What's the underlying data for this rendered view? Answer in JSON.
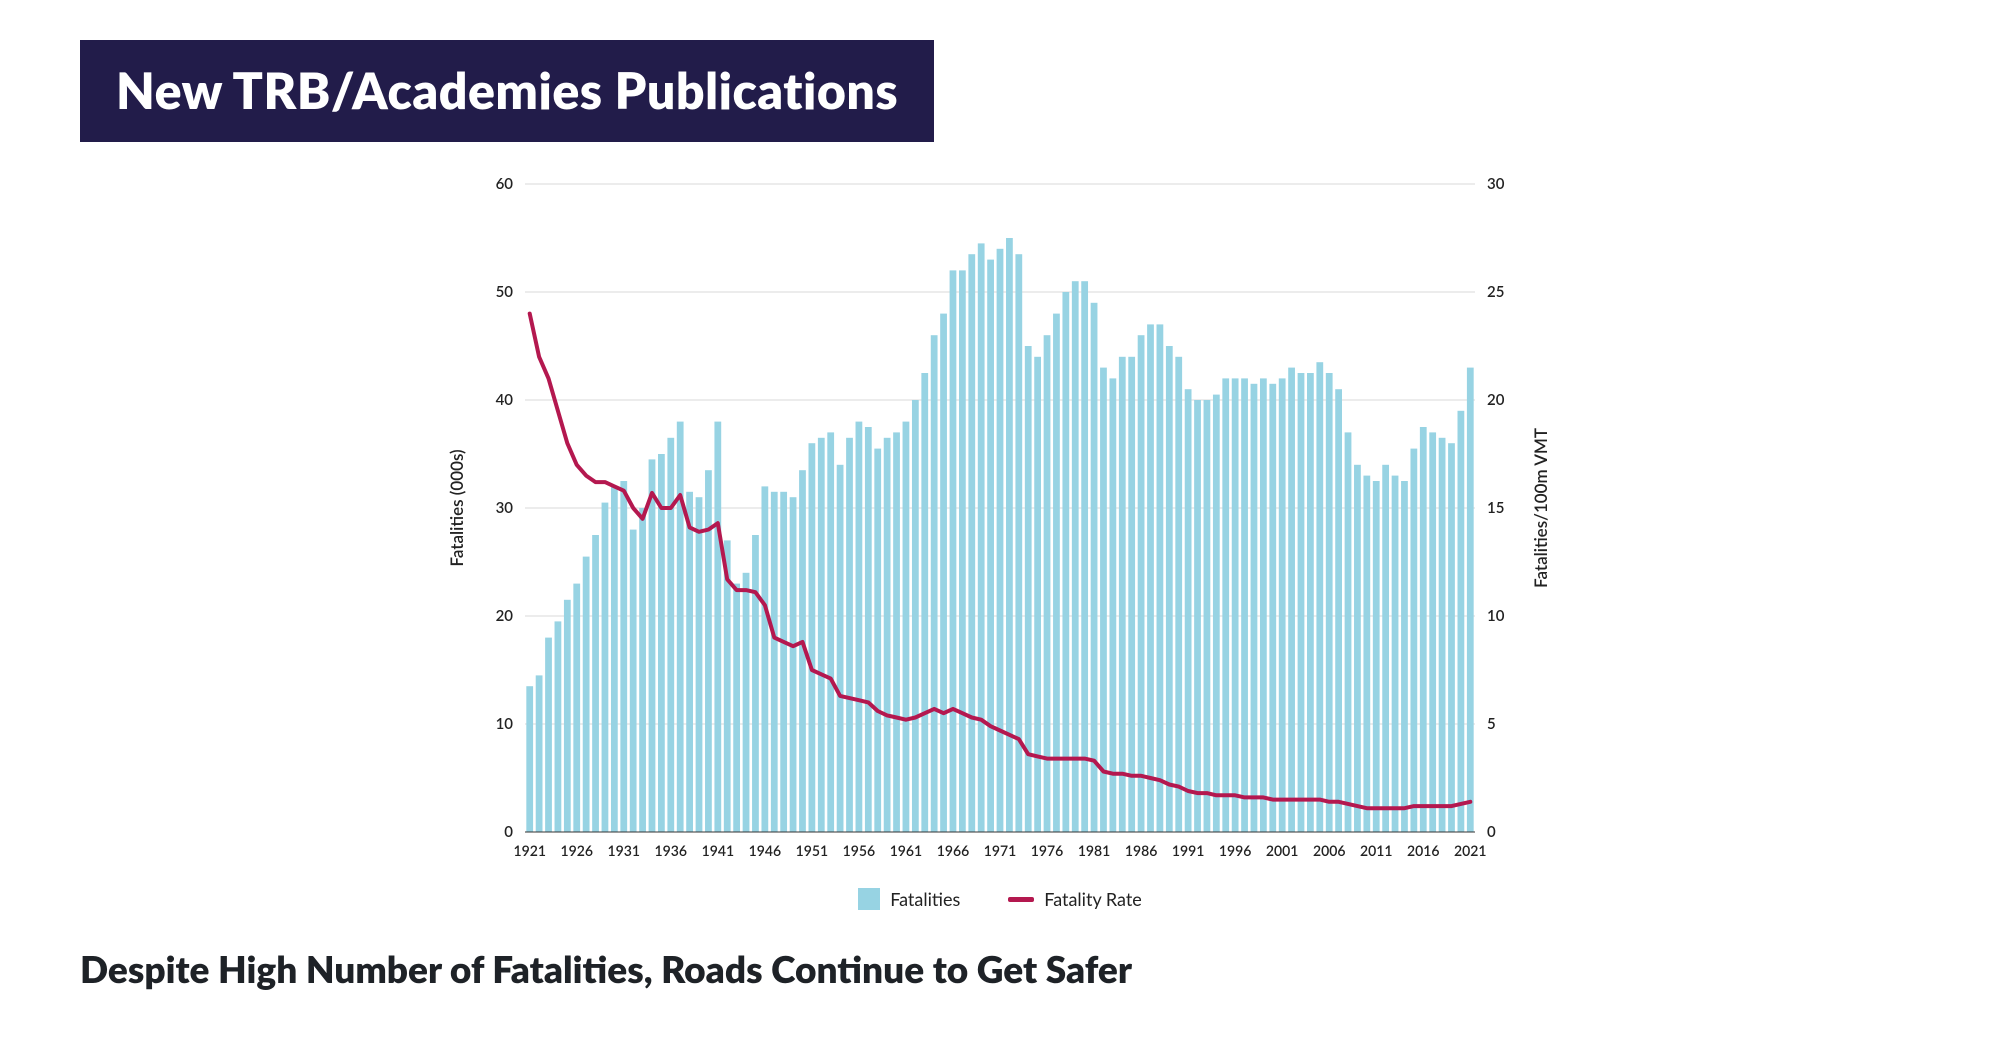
{
  "header": {
    "title": "New TRB/Academies Publications",
    "banner_bg": "#221c4a",
    "banner_fg": "#ffffff"
  },
  "caption": "Despite High Number of Fatalities, Roads Continue to Get Safer",
  "chart": {
    "type": "bar+line",
    "background_color": "#ffffff",
    "grid_color": "#d9d9d9",
    "axis_color": "#333333",
    "year_start": 1921,
    "year_end": 2021,
    "x_tick_start": 1921,
    "x_tick_step": 5,
    "y_left": {
      "label": "Fatalities (000s)",
      "min": 0,
      "max": 60,
      "tick_step": 10,
      "label_fontsize": 17,
      "tick_fontsize": 15
    },
    "y_right": {
      "label": "Fatalities/100m VMT",
      "min": 0,
      "max": 30,
      "tick_step": 5,
      "label_fontsize": 17,
      "tick_fontsize": 15
    },
    "bars": {
      "name": "Fatalities",
      "color": "#97d3e3",
      "width_ratio": 0.72,
      "values": [
        13.5,
        14.5,
        18.0,
        19.5,
        21.5,
        23.0,
        25.5,
        27.5,
        30.5,
        32.0,
        32.5,
        28.0,
        30.0,
        34.5,
        35.0,
        36.5,
        38.0,
        31.5,
        31.0,
        33.5,
        38.0,
        27.0,
        23.0,
        24.0,
        27.5,
        32.0,
        31.5,
        31.5,
        31.0,
        33.5,
        36.0,
        36.5,
        37.0,
        34.0,
        36.5,
        38.0,
        37.5,
        35.5,
        36.5,
        37.0,
        38.0,
        40.0,
        42.5,
        46.0,
        48.0,
        52.0,
        52.0,
        53.5,
        54.5,
        53.0,
        54.0,
        55.0,
        53.5,
        45.0,
        44.0,
        46.0,
        48.0,
        50.0,
        51.0,
        51.0,
        49.0,
        43.0,
        42.0,
        44.0,
        44.0,
        46.0,
        47.0,
        47.0,
        45.0,
        44.0,
        41.0,
        40.0,
        40.0,
        40.5,
        42.0,
        42.0,
        42.0,
        41.5,
        42.0,
        41.5,
        42.0,
        43.0,
        42.5,
        42.5,
        43.5,
        42.5,
        41.0,
        37.0,
        34.0,
        33.0,
        32.5,
        34.0,
        33.0,
        32.5,
        35.5,
        37.5,
        37.0,
        36.5,
        36.0,
        39.0,
        43.0
      ]
    },
    "line": {
      "name": "Fatality Rate",
      "color": "#b4184f",
      "width": 4,
      "values": [
        24.0,
        22.0,
        21.0,
        19.5,
        18.0,
        17.0,
        16.5,
        16.2,
        16.2,
        16.0,
        15.8,
        15.0,
        14.5,
        15.7,
        15.0,
        15.0,
        15.6,
        14.1,
        13.9,
        14.0,
        14.3,
        11.7,
        11.2,
        11.2,
        11.1,
        10.5,
        9.0,
        8.8,
        8.6,
        8.8,
        7.5,
        7.3,
        7.1,
        6.3,
        6.2,
        6.1,
        6.0,
        5.6,
        5.4,
        5.3,
        5.2,
        5.3,
        5.5,
        5.7,
        5.5,
        5.7,
        5.5,
        5.3,
        5.2,
        4.9,
        4.7,
        4.5,
        4.3,
        3.6,
        3.5,
        3.4,
        3.4,
        3.4,
        3.4,
        3.4,
        3.3,
        2.8,
        2.7,
        2.7,
        2.6,
        2.6,
        2.5,
        2.4,
        2.2,
        2.1,
        1.9,
        1.8,
        1.8,
        1.7,
        1.7,
        1.7,
        1.6,
        1.6,
        1.6,
        1.5,
        1.5,
        1.5,
        1.5,
        1.5,
        1.5,
        1.4,
        1.4,
        1.3,
        1.2,
        1.1,
        1.1,
        1.1,
        1.1,
        1.1,
        1.2,
        1.2,
        1.2,
        1.2,
        1.2,
        1.3,
        1.4
      ]
    },
    "legend": {
      "bar_label": "Fatalities",
      "line_label": "Fatality Rate",
      "fontsize": 18
    }
  }
}
